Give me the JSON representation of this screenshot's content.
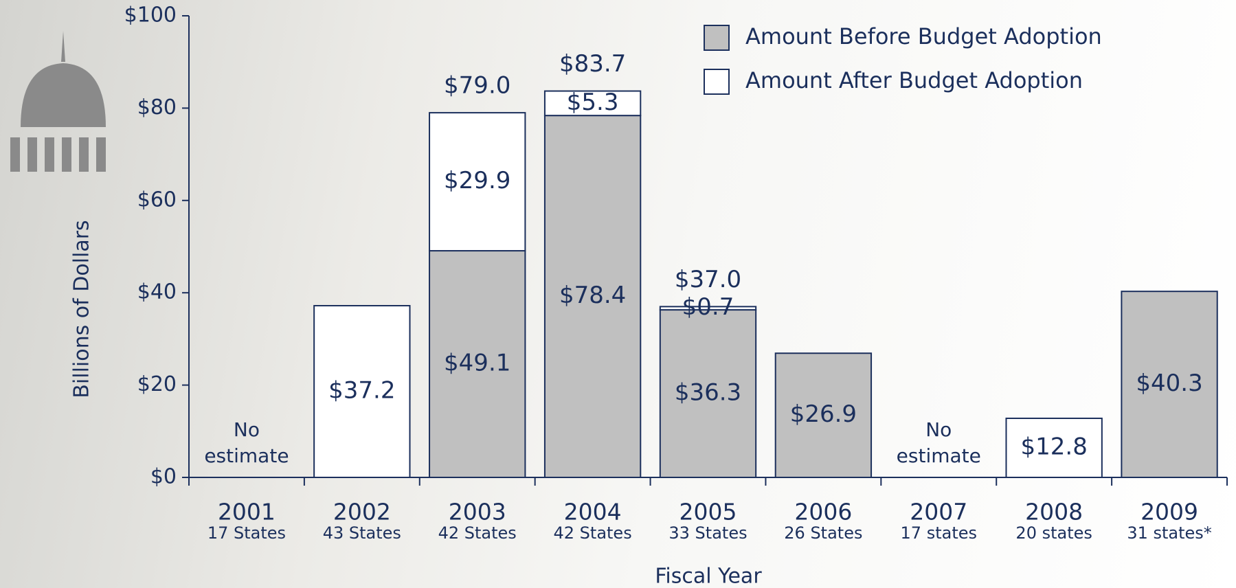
{
  "chart_data": {
    "type": "stacked_bar",
    "y_axis_label": "Billions of Dollars",
    "x_axis_label": "Fiscal Year",
    "categories": [
      "2001",
      "2002",
      "2003",
      "2004",
      "2005",
      "2006",
      "2007",
      "2008",
      "2009"
    ],
    "sublabels": [
      "17 States",
      "43 States",
      "42 States",
      "42 States",
      "33 States",
      "26 States",
      "17 states",
      "20 states",
      "31 states*"
    ],
    "series": [
      {
        "name": "Amount Before Budget Adoption",
        "color": "#c0c0c0",
        "values": [
          null,
          null,
          49.1,
          78.4,
          36.3,
          26.9,
          null,
          null,
          40.3
        ],
        "value_labels": [
          null,
          null,
          "$49.1",
          "$78.4",
          "$36.3",
          "$26.9",
          null,
          null,
          "$40.3"
        ]
      },
      {
        "name": "Amount After Budget Adoption",
        "color": "#ffffff",
        "values": [
          null,
          37.2,
          29.9,
          5.3,
          0.7,
          null,
          null,
          12.8,
          null
        ],
        "value_labels": [
          null,
          "$37.2",
          "$29.9",
          "$5.3",
          "$0.7",
          null,
          null,
          "$12.8",
          null
        ]
      }
    ],
    "totals": [
      null,
      null,
      79.0,
      83.7,
      37.0,
      null,
      null,
      null,
      null
    ],
    "total_labels": [
      null,
      null,
      "$79.0",
      "$83.7",
      "$37.0",
      null,
      null,
      null,
      null
    ],
    "annotations": [
      "No estimate",
      null,
      null,
      null,
      null,
      null,
      "No estimate",
      null,
      null
    ],
    "ylim": [
      0,
      100
    ],
    "yticks": [
      {
        "value": 0,
        "label": "$0"
      },
      {
        "value": 20,
        "label": "$20"
      },
      {
        "value": 40,
        "label": "$40"
      },
      {
        "value": 60,
        "label": "$60"
      },
      {
        "value": 80,
        "label": "$80"
      },
      {
        "value": 100,
        "label": "$100"
      }
    ],
    "legend": "top-right",
    "edge_color": "#1b2f5c"
  }
}
